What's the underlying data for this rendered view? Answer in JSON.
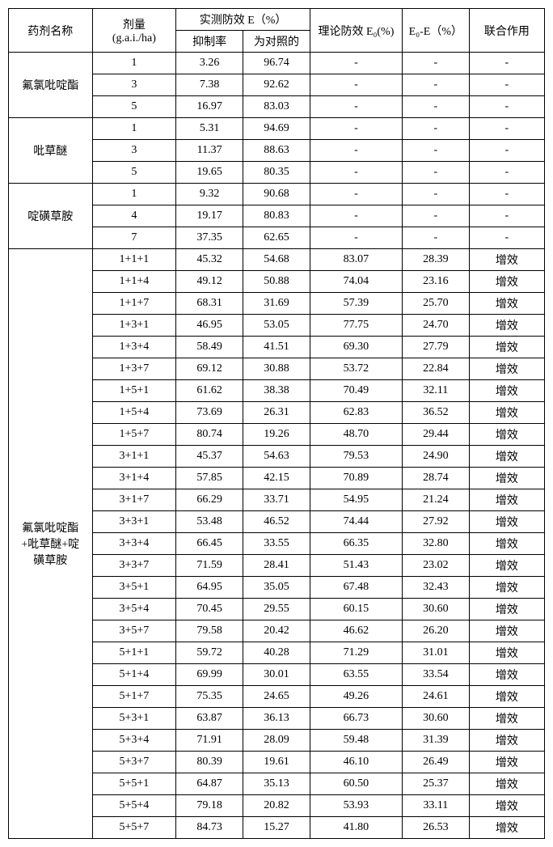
{
  "headers": {
    "name": "药剂名称",
    "dose": "剂量\n(g.a.i./ha)",
    "measured": "实测防效 E（%）",
    "sub1": "抑制率",
    "sub2": "为对照的",
    "e0": "理论防效 E₀(%)",
    "diff": "E₀-E（%）",
    "syn": "联合作用"
  },
  "groups": [
    {
      "name": "氟氯吡啶酯",
      "rows": [
        {
          "dose": "1",
          "r1": "3.26",
          "r2": "96.74",
          "e0": "-",
          "diff": "-",
          "syn": "-"
        },
        {
          "dose": "3",
          "r1": "7.38",
          "r2": "92.62",
          "e0": "-",
          "diff": "-",
          "syn": "-"
        },
        {
          "dose": "5",
          "r1": "16.97",
          "r2": "83.03",
          "e0": "-",
          "diff": "-",
          "syn": "-"
        }
      ]
    },
    {
      "name": "吡草醚",
      "rows": [
        {
          "dose": "1",
          "r1": "5.31",
          "r2": "94.69",
          "e0": "-",
          "diff": "-",
          "syn": "-"
        },
        {
          "dose": "3",
          "r1": "11.37",
          "r2": "88.63",
          "e0": "-",
          "diff": "-",
          "syn": "-"
        },
        {
          "dose": "5",
          "r1": "19.65",
          "r2": "80.35",
          "e0": "-",
          "diff": "-",
          "syn": "-"
        }
      ]
    },
    {
      "name": "啶磺草胺",
      "rows": [
        {
          "dose": "1",
          "r1": "9.32",
          "r2": "90.68",
          "e0": "-",
          "diff": "-",
          "syn": "-"
        },
        {
          "dose": "4",
          "r1": "19.17",
          "r2": "80.83",
          "e0": "-",
          "diff": "-",
          "syn": "-"
        },
        {
          "dose": "7",
          "r1": "37.35",
          "r2": "62.65",
          "e0": "-",
          "diff": "-",
          "syn": "-"
        }
      ]
    },
    {
      "name": "氟氯吡啶酯\n+吡草醚+啶\n磺草胺",
      "rows": [
        {
          "dose": "1+1+1",
          "r1": "45.32",
          "r2": "54.68",
          "e0": "83.07",
          "diff": "28.39",
          "syn": "增效"
        },
        {
          "dose": "1+1+4",
          "r1": "49.12",
          "r2": "50.88",
          "e0": "74.04",
          "diff": "23.16",
          "syn": "增效"
        },
        {
          "dose": "1+1+7",
          "r1": "68.31",
          "r2": "31.69",
          "e0": "57.39",
          "diff": "25.70",
          "syn": "增效"
        },
        {
          "dose": "1+3+1",
          "r1": "46.95",
          "r2": "53.05",
          "e0": "77.75",
          "diff": "24.70",
          "syn": "增效"
        },
        {
          "dose": "1+3+4",
          "r1": "58.49",
          "r2": "41.51",
          "e0": "69.30",
          "diff": "27.79",
          "syn": "增效"
        },
        {
          "dose": "1+3+7",
          "r1": "69.12",
          "r2": "30.88",
          "e0": "53.72",
          "diff": "22.84",
          "syn": "增效"
        },
        {
          "dose": "1+5+1",
          "r1": "61.62",
          "r2": "38.38",
          "e0": "70.49",
          "diff": "32.11",
          "syn": "增效"
        },
        {
          "dose": "1+5+4",
          "r1": "73.69",
          "r2": "26.31",
          "e0": "62.83",
          "diff": "36.52",
          "syn": "增效"
        },
        {
          "dose": "1+5+7",
          "r1": "80.74",
          "r2": "19.26",
          "e0": "48.70",
          "diff": "29.44",
          "syn": "增效"
        },
        {
          "dose": "3+1+1",
          "r1": "45.37",
          "r2": "54.63",
          "e0": "79.53",
          "diff": "24.90",
          "syn": "增效"
        },
        {
          "dose": "3+1+4",
          "r1": "57.85",
          "r2": "42.15",
          "e0": "70.89",
          "diff": "28.74",
          "syn": "增效"
        },
        {
          "dose": "3+1+7",
          "r1": "66.29",
          "r2": "33.71",
          "e0": "54.95",
          "diff": "21.24",
          "syn": "增效"
        },
        {
          "dose": "3+3+1",
          "r1": "53.48",
          "r2": "46.52",
          "e0": "74.44",
          "diff": "27.92",
          "syn": "增效"
        },
        {
          "dose": "3+3+4",
          "r1": "66.45",
          "r2": "33.55",
          "e0": "66.35",
          "diff": "32.80",
          "syn": "增效"
        },
        {
          "dose": "3+3+7",
          "r1": "71.59",
          "r2": "28.41",
          "e0": "51.43",
          "diff": "23.02",
          "syn": "增效"
        },
        {
          "dose": "3+5+1",
          "r1": "64.95",
          "r2": "35.05",
          "e0": "67.48",
          "diff": "32.43",
          "syn": "增效"
        },
        {
          "dose": "3+5+4",
          "r1": "70.45",
          "r2": "29.55",
          "e0": "60.15",
          "diff": "30.60",
          "syn": "增效"
        },
        {
          "dose": "3+5+7",
          "r1": "79.58",
          "r2": "20.42",
          "e0": "46.62",
          "diff": "26.20",
          "syn": "增效"
        },
        {
          "dose": "5+1+1",
          "r1": "59.72",
          "r2": "40.28",
          "e0": "71.29",
          "diff": "31.01",
          "syn": "增效"
        },
        {
          "dose": "5+1+4",
          "r1": "69.99",
          "r2": "30.01",
          "e0": "63.55",
          "diff": "33.54",
          "syn": "增效"
        },
        {
          "dose": "5+1+7",
          "r1": "75.35",
          "r2": "24.65",
          "e0": "49.26",
          "diff": "24.61",
          "syn": "增效"
        },
        {
          "dose": "5+3+1",
          "r1": "63.87",
          "r2": "36.13",
          "e0": "66.73",
          "diff": "30.60",
          "syn": "增效"
        },
        {
          "dose": "5+3+4",
          "r1": "71.91",
          "r2": "28.09",
          "e0": "59.48",
          "diff": "31.39",
          "syn": "增效"
        },
        {
          "dose": "5+3+7",
          "r1": "80.39",
          "r2": "19.61",
          "e0": "46.10",
          "diff": "26.49",
          "syn": "增效"
        },
        {
          "dose": "5+5+1",
          "r1": "64.87",
          "r2": "35.13",
          "e0": "60.50",
          "diff": "25.37",
          "syn": "增效"
        },
        {
          "dose": "5+5+4",
          "r1": "79.18",
          "r2": "20.82",
          "e0": "53.93",
          "diff": "33.11",
          "syn": "增效"
        },
        {
          "dose": "5+5+7",
          "r1": "84.73",
          "r2": "15.27",
          "e0": "41.80",
          "diff": "26.53",
          "syn": "增效"
        }
      ]
    }
  ]
}
